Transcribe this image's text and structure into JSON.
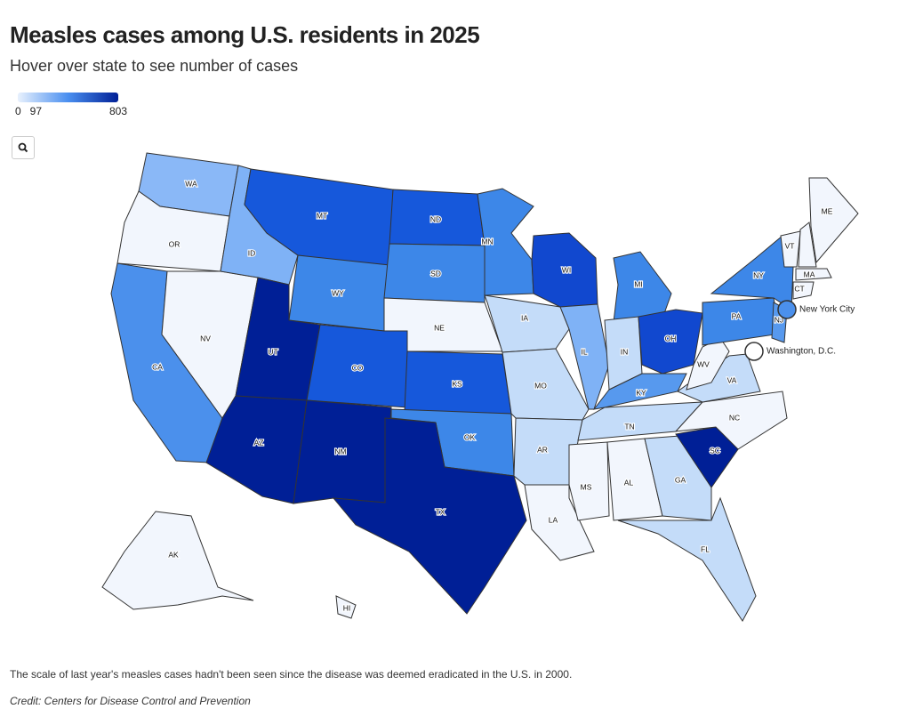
{
  "header": {
    "title": "Measles cases among U.S. residents in 2025",
    "subtitle": "Hover over state to see number of cases"
  },
  "legend": {
    "min": 0,
    "max": 803,
    "ticks": [
      0,
      97,
      803
    ],
    "colors": [
      "#e8f1fd",
      "#4a8ff0",
      "#001f96"
    ]
  },
  "states": [
    {
      "label": "WA",
      "color": "#8ab8f7"
    },
    {
      "label": "OR",
      "color": "#f2f6fd"
    },
    {
      "label": "CA",
      "color": "#4b90ec"
    },
    {
      "label": "NV",
      "color": "#f2f6fd"
    },
    {
      "label": "ID",
      "color": "#7fb2f6"
    },
    {
      "label": "MT",
      "color": "#1658db"
    },
    {
      "label": "WY",
      "color": "#3d87e8"
    },
    {
      "label": "UT",
      "color": "#001f96"
    },
    {
      "label": "AZ",
      "color": "#001f96"
    },
    {
      "label": "CO",
      "color": "#1658db"
    },
    {
      "label": "NM",
      "color": "#001f96"
    },
    {
      "label": "ND",
      "color": "#1658db"
    },
    {
      "label": "SD",
      "color": "#3d87e8"
    },
    {
      "label": "NE",
      "color": "#f2f6fd"
    },
    {
      "label": "KS",
      "color": "#1658db"
    },
    {
      "label": "OK",
      "color": "#3d87e8"
    },
    {
      "label": "TX",
      "color": "#001f96"
    },
    {
      "label": "MN",
      "color": "#3d87e8"
    },
    {
      "label": "IA",
      "color": "#c4dcf9"
    },
    {
      "label": "MO",
      "color": "#c4dcf9"
    },
    {
      "label": "AR",
      "color": "#c4dcf9"
    },
    {
      "label": "LA",
      "color": "#f2f6fd"
    },
    {
      "label": "WI",
      "color": "#1148cf"
    },
    {
      "label": "IL",
      "color": "#7fb2f6"
    },
    {
      "label": "MI",
      "color": "#3d87e8"
    },
    {
      "label": "IN",
      "color": "#c4dcf9"
    },
    {
      "label": "OH",
      "color": "#1148cf"
    },
    {
      "label": "KY",
      "color": "#5799ee"
    },
    {
      "label": "TN",
      "color": "#c4dcf9"
    },
    {
      "label": "MS",
      "color": "#f2f6fd"
    },
    {
      "label": "AL",
      "color": "#f2f6fd"
    },
    {
      "label": "GA",
      "color": "#c4dcf9"
    },
    {
      "label": "FL",
      "color": "#c4dcf9"
    },
    {
      "label": "SC",
      "color": "#001f96"
    },
    {
      "label": "NC",
      "color": "#f2f6fd"
    },
    {
      "label": "VA",
      "color": "#c4dcf9"
    },
    {
      "label": "WV",
      "color": "#f2f6fd"
    },
    {
      "label": "PA",
      "color": "#3d87e8"
    },
    {
      "label": "NY",
      "color": "#3d87e8"
    },
    {
      "label": "NJ",
      "color": "#5799ee"
    },
    {
      "label": "VT",
      "color": "#f2f6fd"
    },
    {
      "label": "ME",
      "color": "#f2f6fd"
    },
    {
      "label": "MA",
      "color": "#f2f6fd"
    },
    {
      "label": "CT",
      "color": "#f2f6fd"
    },
    {
      "label": "AK",
      "color": "#f2f6fd"
    },
    {
      "label": "HI",
      "color": "#f2f6fd"
    }
  ],
  "markers": [
    {
      "label": "New York City",
      "color": "#4b90ec"
    },
    {
      "label": "Washington, D.C.",
      "color": "#ffffff"
    }
  ],
  "footnote": "The scale of last year's measles cases hadn't been seen since the disease was deemed eradicated in the U.S. in 2000.",
  "credit": "Credit: Centers for Disease Control and Prevention"
}
